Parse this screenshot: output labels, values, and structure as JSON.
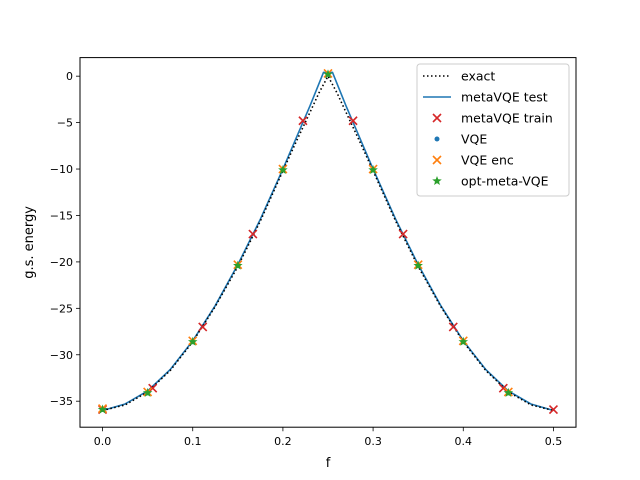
{
  "chart_data": {
    "type": "line",
    "xlabel": "f",
    "ylabel": "g.s. energy",
    "xlim": [
      -0.025,
      0.525
    ],
    "ylim": [
      -37.8,
      2.0
    ],
    "xticks": [
      0.0,
      0.1,
      0.2,
      0.3,
      0.4,
      0.5
    ],
    "xtick_labels": [
      "0.0",
      "0.1",
      "0.2",
      "0.3",
      "0.4",
      "0.5"
    ],
    "yticks": [
      0,
      -5,
      -10,
      -15,
      -20,
      -25,
      -30,
      -35
    ],
    "ytick_labels": [
      "0",
      "−5",
      "−10",
      "−15",
      "−20",
      "−25",
      "−30",
      "−35"
    ],
    "grid": false,
    "legend_position": "top-right",
    "series": [
      {
        "name": "exact",
        "kind": "line",
        "style": "dotted",
        "color": "#000000",
        "x": [
          0.0,
          0.025,
          0.05,
          0.075,
          0.1,
          0.125,
          0.15,
          0.175,
          0.2,
          0.215,
          0.23,
          0.24,
          0.25,
          0.26,
          0.27,
          0.285,
          0.3,
          0.325,
          0.35,
          0.375,
          0.4,
          0.425,
          0.45,
          0.475,
          0.5
        ],
        "y": [
          -36.0,
          -35.4,
          -34.0,
          -31.7,
          -28.6,
          -24.8,
          -20.5,
          -15.6,
          -10.2,
          -7.0,
          -3.9,
          -1.8,
          0.0,
          -1.8,
          -3.9,
          -7.0,
          -10.2,
          -15.6,
          -20.5,
          -24.8,
          -28.6,
          -31.7,
          -34.0,
          -35.4,
          -36.0
        ]
      },
      {
        "name": "metaVQE test",
        "kind": "line",
        "style": "solid",
        "color": "#1f77b4",
        "x": [
          0.0,
          0.025,
          0.05,
          0.075,
          0.1,
          0.125,
          0.15,
          0.175,
          0.2,
          0.215,
          0.23,
          0.245,
          0.255,
          0.27,
          0.285,
          0.3,
          0.325,
          0.35,
          0.375,
          0.4,
          0.425,
          0.45,
          0.475,
          0.5
        ],
        "y": [
          -36.0,
          -35.3,
          -33.9,
          -31.6,
          -28.5,
          -24.7,
          -20.3,
          -15.4,
          -10.0,
          -6.6,
          -3.2,
          0.4,
          0.4,
          -3.2,
          -6.6,
          -10.0,
          -15.4,
          -20.3,
          -24.7,
          -28.5,
          -31.6,
          -33.9,
          -35.3,
          -36.0
        ]
      },
      {
        "name": "metaVQE train",
        "kind": "scatter",
        "marker": "x",
        "color": "#d62728",
        "x": [
          0.0,
          0.0556,
          0.1111,
          0.1667,
          0.2222,
          0.2778,
          0.3333,
          0.3889,
          0.4444,
          0.5
        ],
        "y": [
          -35.9,
          -33.6,
          -27.0,
          -17.0,
          -4.8,
          -4.8,
          -17.0,
          -27.0,
          -33.6,
          -35.9
        ]
      },
      {
        "name": "VQE",
        "kind": "scatter",
        "marker": "dot",
        "color": "#1f77b4",
        "x": [
          0.0,
          0.05,
          0.1,
          0.15,
          0.2,
          0.25,
          0.3,
          0.35,
          0.4,
          0.45
        ],
        "y": [
          -35.9,
          -34.1,
          -28.6,
          -20.4,
          -10.1,
          0.2,
          -10.1,
          -20.4,
          -28.6,
          -34.1
        ]
      },
      {
        "name": "VQE enc",
        "kind": "scatter",
        "marker": "x",
        "color": "#ff7f0e",
        "x": [
          0.0,
          0.05,
          0.1,
          0.15,
          0.2,
          0.25,
          0.3,
          0.35,
          0.4,
          0.45
        ],
        "y": [
          -35.8,
          -34.0,
          -28.5,
          -20.3,
          -10.0,
          0.3,
          -10.0,
          -20.3,
          -28.5,
          -34.0
        ]
      },
      {
        "name": "opt-meta-VQE",
        "kind": "scatter",
        "marker": "star",
        "color": "#2ca02c",
        "x": [
          0.0,
          0.05,
          0.1,
          0.15,
          0.2,
          0.25,
          0.3,
          0.35,
          0.4,
          0.45
        ],
        "y": [
          -35.9,
          -34.1,
          -28.6,
          -20.4,
          -10.1,
          0.2,
          -10.1,
          -20.4,
          -28.6,
          -34.1
        ]
      }
    ]
  }
}
